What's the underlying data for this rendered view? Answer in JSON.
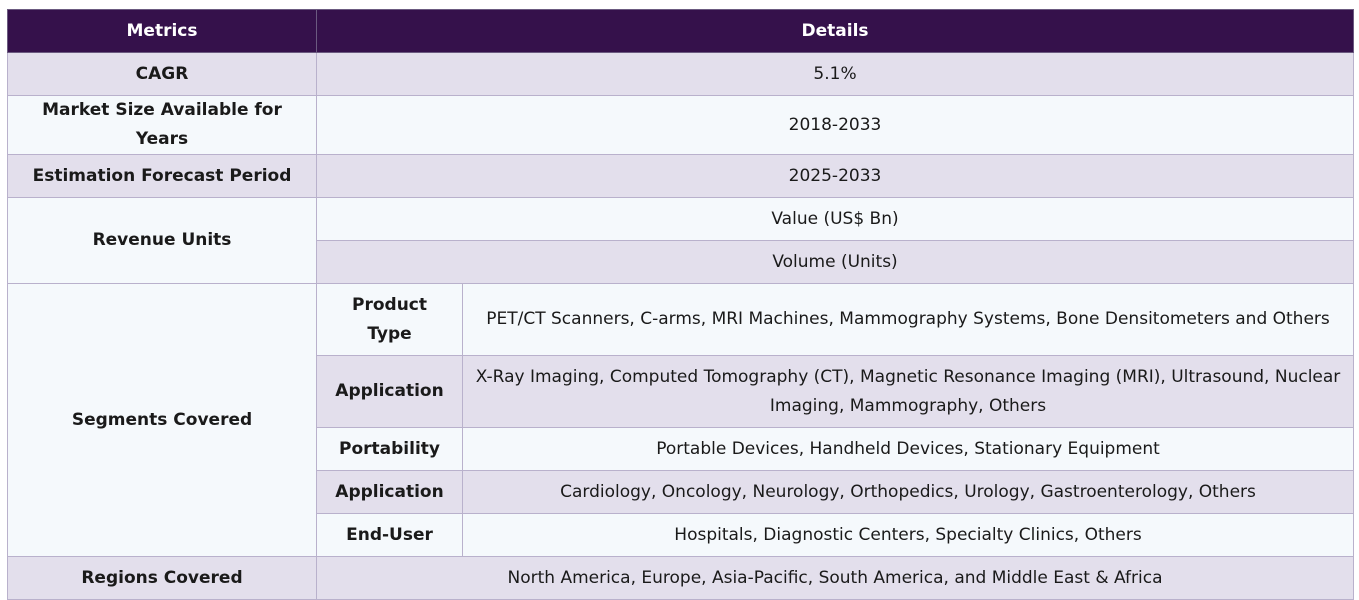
{
  "header": {
    "metrics": "Metrics",
    "details": "Details"
  },
  "rows": {
    "cagr": {
      "label": "CAGR",
      "value": "5.1%"
    },
    "market_size": {
      "label": "Market Size Available for Years",
      "value": "2018-2033"
    },
    "forecast": {
      "label": "Estimation Forecast Period",
      "value": "2025-2033"
    },
    "revenue_units": {
      "label": "Revenue Units",
      "values": [
        "Value (US$ Bn)",
        "Volume (Units)"
      ]
    },
    "segments": {
      "label": "Segments Covered",
      "items": [
        {
          "label": "Product Type",
          "value": "PET/CT Scanners, C-arms, MRI Machines, Mammography Systems, Bone Densitometers and Others"
        },
        {
          "label": "Application",
          "value": "X-Ray Imaging, Computed Tomography (CT), Magnetic Resonance Imaging (MRI), Ultrasound, Nuclear Imaging, Mammography, Others"
        },
        {
          "label": "Portability",
          "value": "Portable Devices, Handheld Devices, Stationary Equipment"
        },
        {
          "label": "Application",
          "value": "Cardiology, Oncology, Neurology, Orthopedics, Urology, Gastroenterology, Others"
        },
        {
          "label": "End-User",
          "value": "Hospitals, Diagnostic Centers, Specialty Clinics, Others"
        }
      ]
    },
    "regions": {
      "label": "Regions Covered",
      "value": "North America, Europe, Asia-Pacific, South America, and Middle East & Africa"
    }
  },
  "colors": {
    "header_bg": "#35114b",
    "row_shade": "#e3dfec",
    "row_light": "#f5f9fc",
    "border": "#b9b1cc"
  }
}
